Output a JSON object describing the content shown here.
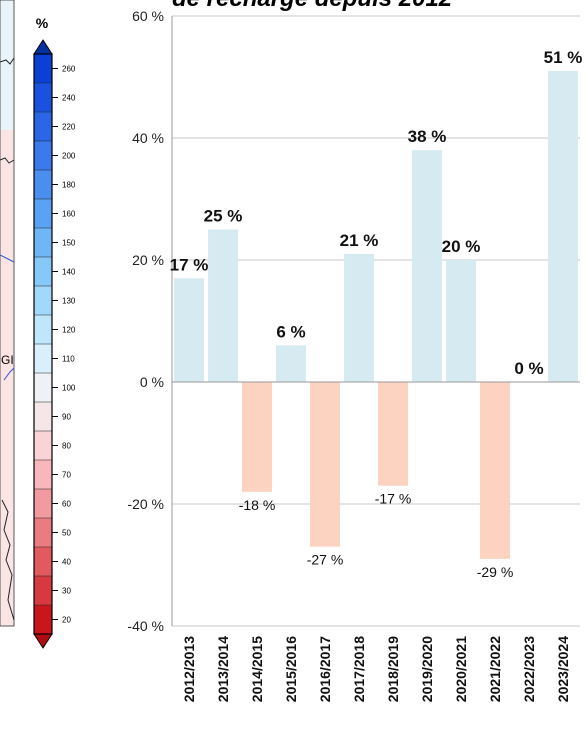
{
  "page": {
    "title_fragment": "de recharge depuis 2012"
  },
  "colorbar": {
    "unit": "%",
    "ticks": [
      "260",
      "240",
      "220",
      "200",
      "180",
      "160",
      "150",
      "140",
      "130",
      "120",
      "110",
      "100",
      "90",
      "80",
      "70",
      "60",
      "50",
      "40",
      "30",
      "20"
    ],
    "map_label": "GI"
  },
  "chart_data": {
    "type": "bar",
    "categories": [
      "2012/2013",
      "2013/2014",
      "2014/2015",
      "2015/2016",
      "2016/2017",
      "2017/2018",
      "2018/2019",
      "2019/2020",
      "2020/2021",
      "2021/2022",
      "2022/2023",
      "2023/2024"
    ],
    "values": [
      17,
      25,
      -18,
      6,
      -27,
      21,
      -17,
      38,
      20,
      -29,
      0,
      51
    ],
    "data_labels": [
      "17 %",
      "25 %",
      "-18 %",
      "6 %",
      "-27 %",
      "21 %",
      "-17 %",
      "38 %",
      "20 %",
      "-29 %",
      "0 %",
      "51 %"
    ],
    "ylim": [
      -40,
      60
    ],
    "yticks": [
      60,
      40,
      20,
      0,
      -20,
      -40
    ],
    "ytick_labels": [
      "60 %",
      "40 %",
      "20 %",
      "0 %",
      "-20 %",
      "-40 %"
    ],
    "grid": true,
    "colors": {
      "positive": "#d6eaf2",
      "negative": "#fcd2c0",
      "grid": "#c8c8c8",
      "axis": "#9a9a9a"
    }
  }
}
